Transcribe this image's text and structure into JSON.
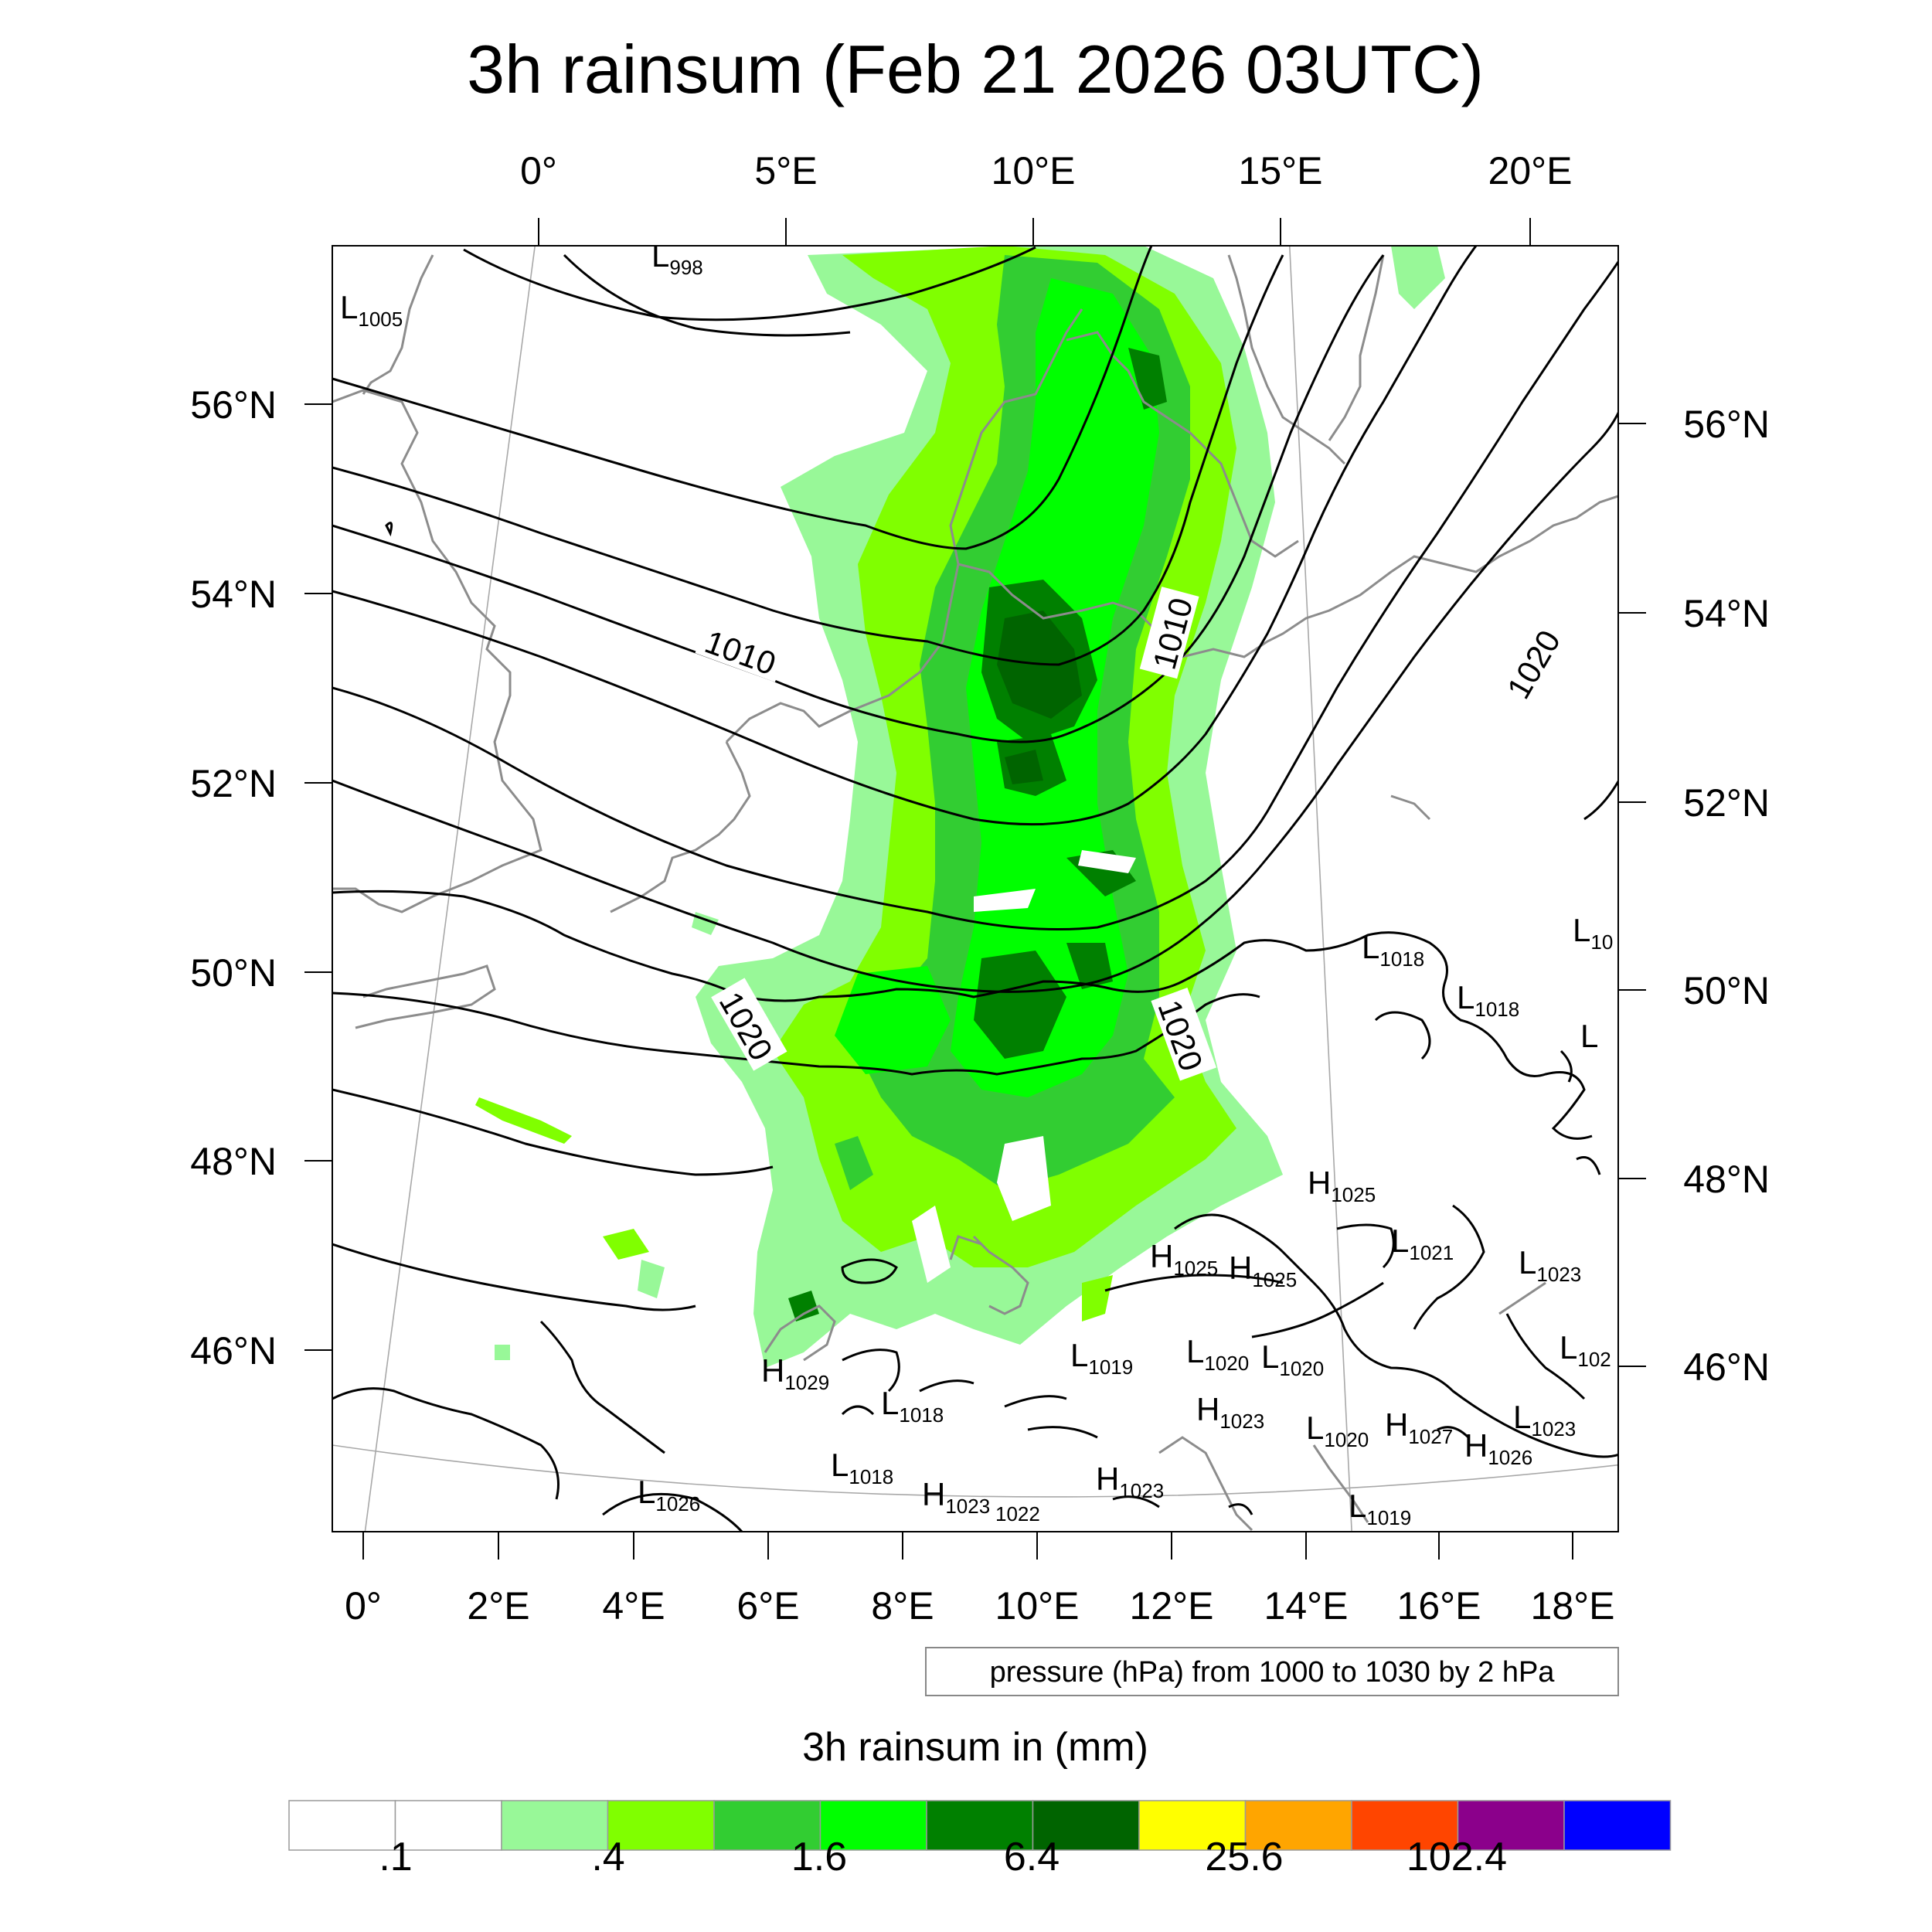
{
  "title": "3h rainsum (Feb 21 2026 03UTC)",
  "top_axis_labels": [
    "0°",
    "5°E",
    "10°E",
    "15°E",
    "20°E"
  ],
  "bottom_axis_labels": [
    "0°",
    "2°E",
    "4°E",
    "6°E",
    "8°E",
    "10°E",
    "12°E",
    "14°E",
    "16°E",
    "18°E"
  ],
  "left_axis_labels": [
    "56°N",
    "54°N",
    "52°N",
    "50°N",
    "48°N",
    "46°N"
  ],
  "right_axis_labels": [
    "56°N",
    "54°N",
    "52°N",
    "50°N",
    "48°N",
    "46°N"
  ],
  "isobar_labels": [
    "1010",
    "1010",
    "1020",
    "1020",
    "1020"
  ],
  "pressure_centers": [
    {
      "letter": "L",
      "value": "998"
    },
    {
      "letter": "L",
      "value": "1005"
    },
    {
      "letter": "L",
      "value": "1018"
    },
    {
      "letter": "L",
      "value": "1018"
    },
    {
      "letter": "L",
      "value": "10"
    },
    {
      "letter": "L",
      "value": ""
    },
    {
      "letter": "H",
      "value": "1025"
    },
    {
      "letter": "H",
      "value": "1025"
    },
    {
      "letter": "H",
      "value": "1025"
    },
    {
      "letter": "L",
      "value": "1021"
    },
    {
      "letter": "L",
      "value": "1023"
    },
    {
      "letter": "L",
      "value": "1019"
    },
    {
      "letter": "L",
      "value": "1020"
    },
    {
      "letter": "L",
      "value": "1020"
    },
    {
      "letter": "L",
      "value": "102"
    },
    {
      "letter": "H",
      "value": "1029"
    },
    {
      "letter": "L",
      "value": "1018"
    },
    {
      "letter": "H",
      "value": "1023"
    },
    {
      "letter": "L",
      "value": "1020"
    },
    {
      "letter": "H",
      "value": "1027"
    },
    {
      "letter": "L",
      "value": "1023"
    },
    {
      "letter": "H",
      "value": "1026"
    },
    {
      "letter": "L",
      "value": "1018"
    },
    {
      "letter": "H",
      "value": "1023"
    },
    {
      "letter": "L",
      "value": "1026"
    },
    {
      "letter": "H",
      "value": "1023"
    },
    {
      "letter": "",
      "value": "1022"
    },
    {
      "letter": "L",
      "value": "1019"
    }
  ],
  "info_box": "pressure (hPa) from 1000 to 1030 by 2 hPa",
  "colorbar": {
    "title": "3h rainsum in (mm)",
    "tick_labels": [
      ".1",
      ".4",
      "1.6",
      "6.4",
      "25.6",
      "102.4"
    ],
    "colors": [
      "#ffffff",
      "#ffffff",
      "#98f898",
      "#80ff00",
      "#32cd32",
      "#00ff00",
      "#008000",
      "#006400",
      "#ffff00",
      "#ffa500",
      "#ff4500",
      "#8b008b",
      "#0000ff"
    ]
  }
}
